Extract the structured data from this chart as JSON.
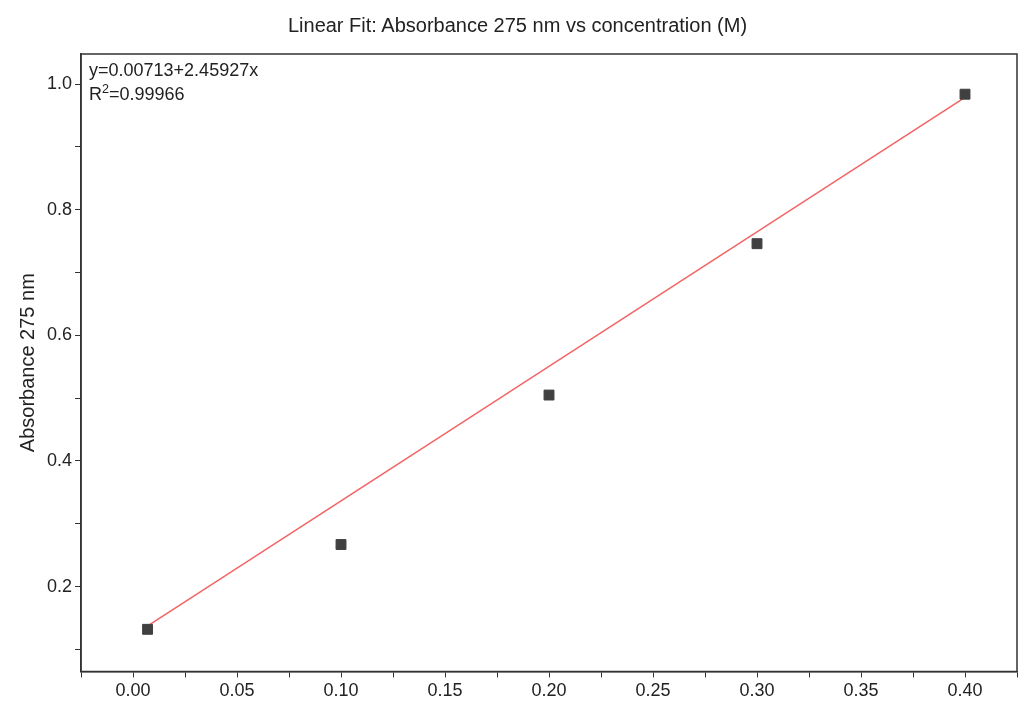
{
  "chart_data": {
    "type": "scatter",
    "title": "Linear Fit: Absorbance 275 nm vs concentration (M)",
    "ylabel": "Absorbance 275 nm",
    "annotations": [
      "y=0.00713+2.45927x",
      "R$^{2}$=0.99966"
    ],
    "series": [
      {
        "type": "scatter",
        "color": "#404040",
        "marker": "square",
        "x": [
          0.007,
          0.1,
          0.2,
          0.3,
          0.4
        ],
        "values": [
          0.132,
          0.267,
          0.505,
          0.746,
          0.984
        ]
      },
      {
        "type": "line",
        "color": "#f26464",
        "marker": "none",
        "x": [
          0.005,
          0.4
        ],
        "values": [
          0.133,
          0.979
        ]
      }
    ],
    "xlim": [
      -0.025,
      0.425
    ],
    "xticks": [
      {
        "value": -0.025,
        "label": null
      },
      {
        "value": 0,
        "label": "0.00"
      },
      {
        "value": 0.025,
        "label": null
      },
      0.05,
      {
        "value": 0.075,
        "label": null
      },
      {
        "value": 0.1,
        "label": "0.10"
      },
      {
        "value": 0.125,
        "label": null
      },
      0.15,
      {
        "value": 0.175,
        "label": null
      },
      {
        "value": 0.2,
        "label": "0.20"
      },
      {
        "value": 0.225,
        "label": null
      },
      0.25,
      {
        "value": 0.275,
        "label": null
      },
      {
        "value": 0.3,
        "label": "0.30"
      },
      {
        "value": 0.325,
        "label": null
      },
      0.35,
      {
        "value": 0.375,
        "label": null
      },
      {
        "value": 0.4,
        "label": "0.40"
      },
      {
        "value": 0.425,
        "label": null
      }
    ],
    "ylim": [
      0.065,
      1.048
    ],
    "yticks": [
      {
        "value": 0.1,
        "label": null
      },
      0.2,
      {
        "value": 0.3,
        "label": null
      },
      0.4,
      {
        "value": 0.5,
        "label": null
      },
      0.6,
      {
        "value": 0.7,
        "label": null
      },
      0.8,
      {
        "value": 0.9,
        "label": null
      },
      {
        "value": 1,
        "label": "1.0"
      }
    ],
    "grid": false,
    "legend": false
  }
}
